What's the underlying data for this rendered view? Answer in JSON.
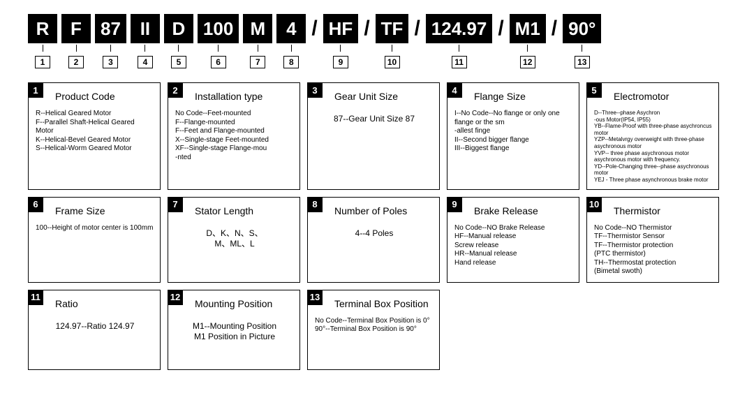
{
  "code_row": [
    {
      "text": "R",
      "index": "1"
    },
    {
      "text": "F",
      "index": "2"
    },
    {
      "text": "87",
      "index": "3"
    },
    {
      "text": "II",
      "index": "4"
    },
    {
      "text": "D",
      "index": "5"
    },
    {
      "text": "100",
      "index": "6"
    },
    {
      "text": "M",
      "index": "7"
    },
    {
      "text": "4",
      "index": "8"
    },
    {
      "slash": "/"
    },
    {
      "text": "HF",
      "index": "9"
    },
    {
      "slash": "/"
    },
    {
      "text": "TF",
      "index": "10"
    },
    {
      "slash": "/"
    },
    {
      "text": "124.97",
      "index": "11"
    },
    {
      "slash": "/"
    },
    {
      "text": "M1",
      "index": "12"
    },
    {
      "slash": "/"
    },
    {
      "text": "90°",
      "index": "13"
    }
  ],
  "cards": [
    {
      "num": "1",
      "title": "Product Code",
      "body": "R--Helical Geared Motor\nF--Parallel Shaft-Helical Geared Motor\nK--Helical-Bevel Geared Motor\nS--Helical-Worm Geared Motor"
    },
    {
      "num": "2",
      "title": "Installation type",
      "body": "No Code--Feet-mounted\nF--Flange-mounted\nF--Feet and Flange-mounted\nX--Single-stage Feet-mounted\nXF--Single-stage Flange-mou\n-nted"
    },
    {
      "num": "3",
      "title": "Gear Unit Size",
      "body": "87--Gear Unit Size 87",
      "center": true
    },
    {
      "num": "4",
      "title": "Flange Size",
      "body": "I--No Code--No flange or only one flange or the sm\n-allest finge\nII--Second bigger flange\nIII--Biggest flange"
    },
    {
      "num": "5",
      "title": "Electromotor",
      "tiny": true,
      "body": "D--Three--phase Asychron\n-ous Motor(IP54, IP55)\nYB--Flame-Proof with three-phase asychroncus motor\nYZP--Metalvrgy overweight with three-phase asychronous motor\nYVP-- three phase asychronous motor asychronous motor with frequency.\nYD--Pole-Changing three--phase asychronous motor\nYEJ - Three phase asynchronous brake motor"
    },
    {
      "num": "6",
      "title": "Frame Size",
      "body": "100--Height of motor center is 100mm"
    },
    {
      "num": "7",
      "title": "Stator Length",
      "body": "D、K、N、S、\nM、ML、L",
      "center": true
    },
    {
      "num": "8",
      "title": "Number of Poles",
      "body": "4--4 Poles",
      "center": true
    },
    {
      "num": "9",
      "title": "Brake Release",
      "body": "No Code--NO Brake Release\nHF--Manual release\nScrew release\nHR--Manual release\nHand release"
    },
    {
      "num": "10",
      "title": "Thermistor",
      "body": "No Code--NO Thermistor\nTF--Thermistor Sensor\nTF--Thermistor protection\n(PTC thermistor)\nTH--Thermostat protection\n(Bimetal swoth)"
    },
    {
      "num": "11",
      "title": "Ratio",
      "body": "124.97--Ratio 124.97",
      "center": true
    },
    {
      "num": "12",
      "title": "Mounting Position",
      "body": "M1--Mounting Position\nM1 Position in Picture",
      "center": true
    },
    {
      "num": "13",
      "title": "Terminal Box Position",
      "body": "No Code--Terminal Box Position is 0°\n90°--Terminal Box Position is 90°"
    }
  ]
}
